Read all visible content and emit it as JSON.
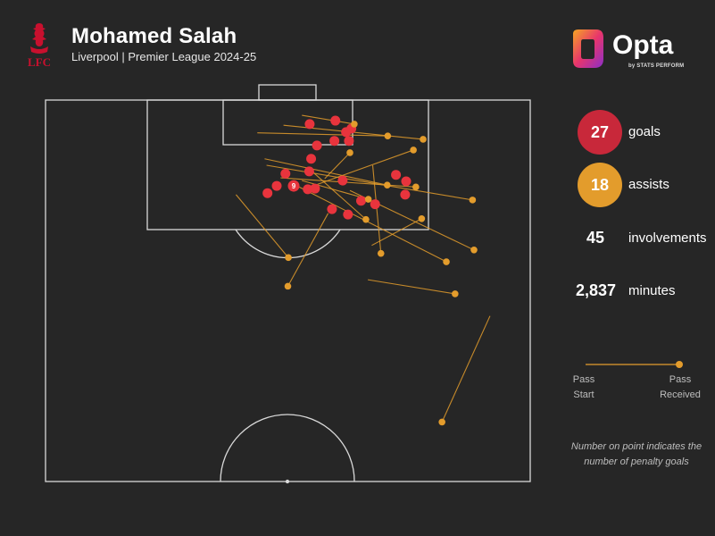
{
  "header": {
    "title": "Mohamed Salah",
    "subtitle": "Liverpool | Premier League 2024-25",
    "crest_text": "LFC",
    "brand": "Opta",
    "brand_sub": "by STATS PERFORM"
  },
  "stats": {
    "goals": {
      "value": "27",
      "label": "goals",
      "color": "#c8283a"
    },
    "assists": {
      "value": "18",
      "label": "assists",
      "color": "#e39c2c"
    },
    "involvements": {
      "value": "45",
      "label": "involvements"
    },
    "minutes": {
      "value": "2,837",
      "label": "minutes"
    }
  },
  "legend": {
    "start": "Pass\nStart",
    "received": "Pass\nReceived",
    "note": "Number on point indicates the number of penalty goals"
  },
  "colors": {
    "background": "#262626",
    "pitch_lines": "#d9d9d9",
    "goal": "#e8343d",
    "assist": "#e39c2c"
  },
  "chart_data": {
    "type": "scatter",
    "coordinate_system": "pitch half, x 0-100 across width, y 0-100 from goal line to halfway line",
    "goals": [
      {
        "x": 59.8,
        "y": 5.4
      },
      {
        "x": 63.1,
        "y": 7.5
      },
      {
        "x": 54.5,
        "y": 6.3
      },
      {
        "x": 62.0,
        "y": 8.4
      },
      {
        "x": 59.6,
        "y": 10.7
      },
      {
        "x": 62.6,
        "y": 10.7
      },
      {
        "x": 56.0,
        "y": 11.9
      },
      {
        "x": 54.8,
        "y": 15.4
      },
      {
        "x": 54.4,
        "y": 18.7
      },
      {
        "x": 49.5,
        "y": 19.3
      },
      {
        "x": 72.3,
        "y": 19.6
      },
      {
        "x": 61.3,
        "y": 21.1
      },
      {
        "x": 74.4,
        "y": 21.3
      },
      {
        "x": 47.7,
        "y": 22.5
      },
      {
        "x": 51.2,
        "y": 22.5,
        "penalty_goals": 9
      },
      {
        "x": 54.1,
        "y": 23.4
      },
      {
        "x": 45.8,
        "y": 24.4
      },
      {
        "x": 55.6,
        "y": 23.2
      },
      {
        "x": 74.2,
        "y": 24.8
      },
      {
        "x": 65.1,
        "y": 26.4
      },
      {
        "x": 68.0,
        "y": 27.3
      },
      {
        "x": 59.1,
        "y": 28.6
      },
      {
        "x": 62.4,
        "y": 30.0
      }
    ],
    "assists": [
      {
        "start": [
          52.9,
          4.0
        ],
        "end": [
          63.7,
          6.3
        ]
      },
      {
        "start": [
          49.1,
          6.6
        ],
        "end": [
          77.9,
          10.3
        ]
      },
      {
        "start": [
          43.7,
          8.6
        ],
        "end": [
          70.6,
          9.4
        ]
      },
      {
        "start": [
          45.2,
          15.4
        ],
        "end": [
          70.5,
          22.3
        ]
      },
      {
        "start": [
          45.6,
          17.1
        ],
        "end": [
          88.1,
          26.2
        ]
      },
      {
        "start": [
          54.3,
          17.9
        ],
        "end": [
          66.1,
          31.3
        ]
      },
      {
        "start": [
          48.5,
          20.4
        ],
        "end": [
          76.4,
          22.8
        ]
      },
      {
        "start": [
          57.6,
          20.6
        ],
        "end": [
          62.8,
          13.8
        ]
      },
      {
        "start": [
          52.9,
          21.1
        ],
        "end": [
          66.6,
          26.0
        ]
      },
      {
        "start": [
          56.1,
          22.1
        ],
        "end": [
          75.9,
          13.1
        ]
      },
      {
        "start": [
          51.9,
          22.5
        ],
        "end": [
          82.7,
          42.4
        ]
      },
      {
        "start": [
          67.5,
          17.1
        ],
        "end": [
          69.2,
          40.2
        ]
      },
      {
        "start": [
          62.8,
          23.7
        ],
        "end": [
          88.4,
          39.3
        ]
      },
      {
        "start": [
          39.3,
          24.8
        ],
        "end": [
          50.1,
          41.3
        ]
      },
      {
        "start": [
          58.3,
          29.7
        ],
        "end": [
          50.0,
          48.8
        ]
      },
      {
        "start": [
          67.3,
          38.1
        ],
        "end": [
          77.6,
          31.1
        ]
      },
      {
        "start": [
          66.5,
          47.1
        ],
        "end": [
          84.5,
          50.8
        ]
      },
      {
        "start": [
          91.7,
          56.6
        ],
        "end": [
          81.8,
          84.4
        ]
      }
    ]
  }
}
